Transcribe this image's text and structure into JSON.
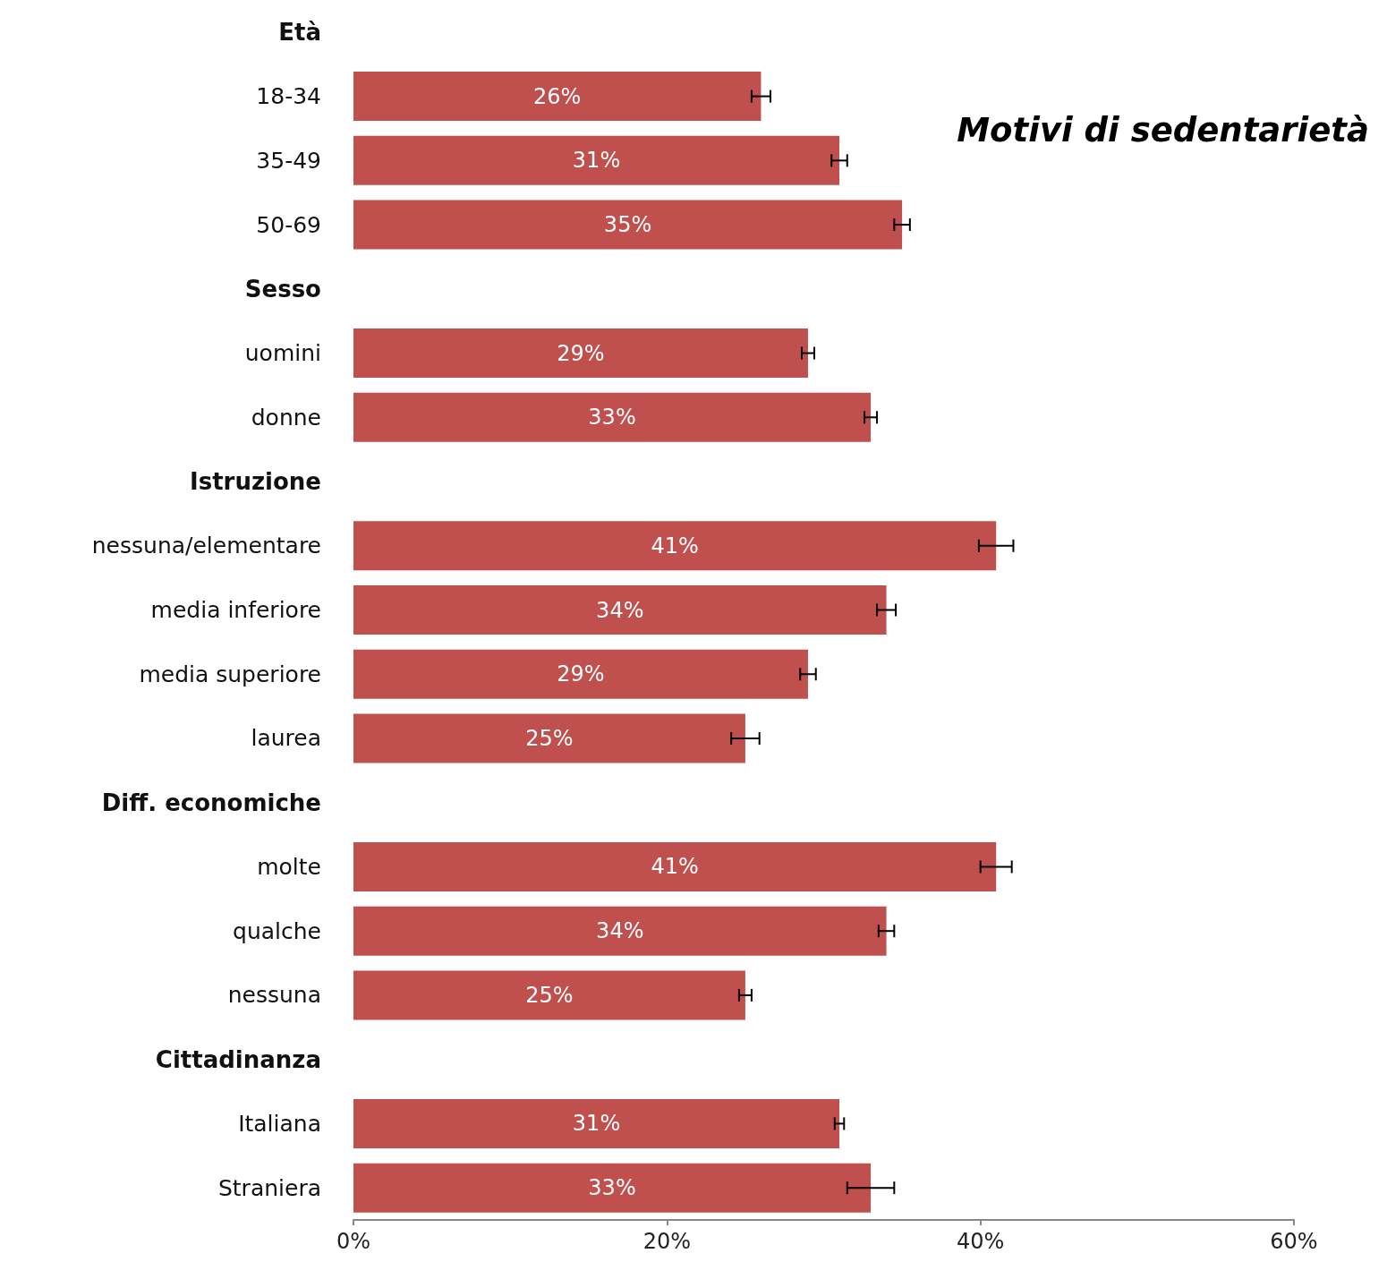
{
  "chart_data": {
    "type": "bar",
    "orientation": "horizontal",
    "title": "Motivi di sedentarietà",
    "categories": [
      "Età",
      "18-34",
      "35-49",
      "50-69",
      "Sesso",
      "uomini",
      "donne",
      "Istruzione",
      "nessuna/elementare",
      "media inferiore",
      "media superiore",
      "laurea",
      "Diff. economiche",
      "molte",
      "qualche",
      "nessuna",
      "Cittadinanza",
      "Italiana",
      "Straniera"
    ],
    "values": [
      null,
      26,
      31,
      35,
      null,
      29,
      33,
      null,
      41,
      34,
      29,
      25,
      null,
      41,
      34,
      25,
      null,
      31,
      33
    ],
    "errors": [
      null,
      0.6,
      0.5,
      0.5,
      null,
      0.4,
      0.4,
      null,
      1.1,
      0.6,
      0.5,
      0.9,
      null,
      1.0,
      0.5,
      0.4,
      null,
      0.3,
      1.5
    ],
    "value_labels": [
      null,
      "26%",
      "31%",
      "35%",
      null,
      "29%",
      "33%",
      null,
      "41%",
      "34%",
      "29%",
      "25%",
      null,
      "41%",
      "34%",
      "25%",
      null,
      "31%",
      "33%"
    ],
    "color": "#c0504d",
    "xlim": [
      0,
      60
    ],
    "xticks": [
      {
        "value": 0,
        "label": "0%"
      },
      {
        "value": 20,
        "label": "20%"
      },
      {
        "value": 40,
        "label": "40%"
      },
      {
        "value": 60,
        "label": "60%"
      }
    ],
    "grid": false
  }
}
